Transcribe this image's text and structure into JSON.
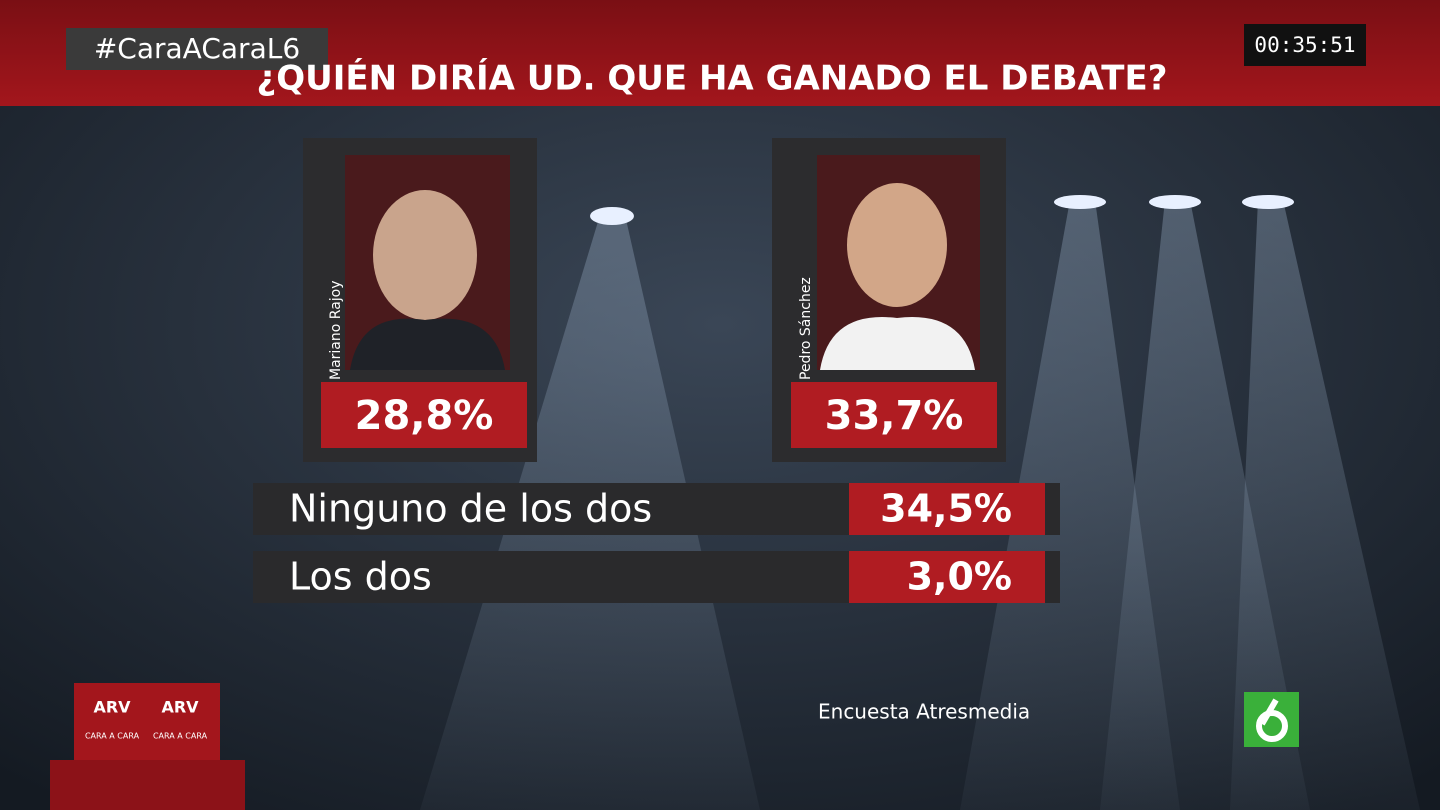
{
  "header": {
    "hashtag": "#CaraACaraL6",
    "clock": "00:35:51",
    "question": "¿QUIÉN DIRÍA UD. QUE HA GANADO EL DEBATE?"
  },
  "candidates": [
    {
      "name": "Mariano Rajoy",
      "result": "28,8%"
    },
    {
      "name": "Pedro Sánchez",
      "result": "33,7%"
    }
  ],
  "options": [
    {
      "label": "Ninguno de los dos",
      "result": "34,5%"
    },
    {
      "label": "Los dos",
      "result": "3,0%"
    }
  ],
  "source": "Encuesta Atresmedia",
  "badge": {
    "logo": "ARV",
    "caption": "CARA A CARA"
  }
}
